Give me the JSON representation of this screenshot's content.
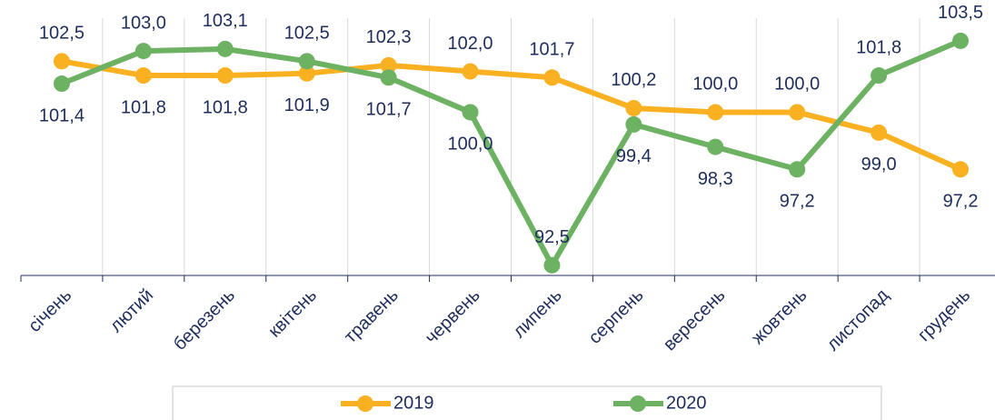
{
  "chart_data": {
    "type": "line",
    "categories": [
      "січень",
      "лютий",
      "березень",
      "квітень",
      "травень",
      "червень",
      "липень",
      "серпень",
      "вересень",
      "жовтень",
      "листопад",
      "грудень"
    ],
    "series": [
      {
        "name": "2019",
        "color": "#f9b122",
        "values": [
          102.5,
          101.8,
          101.8,
          101.9,
          102.3,
          102.0,
          101.7,
          100.2,
          100.0,
          100.0,
          99.0,
          97.2
        ],
        "value_labels": [
          "102,5",
          "101,8",
          "101,8",
          "101,9",
          "102,3",
          "102,0",
          "101,7",
          "100,2",
          "100,0",
          "100,0",
          "99,0",
          "97,2"
        ]
      },
      {
        "name": "2020",
        "color": "#6db163",
        "values": [
          101.4,
          103.0,
          103.1,
          102.5,
          101.7,
          100.0,
          92.5,
          99.4,
          98.3,
          97.2,
          101.8,
          103.5
        ],
        "value_labels": [
          "101,4",
          "103,0",
          "103,1",
          "102,5",
          "101,7",
          "100,0",
          "92,5",
          "99,4",
          "98,3",
          "97,2",
          "101,8",
          "103,5"
        ]
      }
    ],
    "ylim": [
      92,
      105.5
    ],
    "legend": "bottom"
  }
}
